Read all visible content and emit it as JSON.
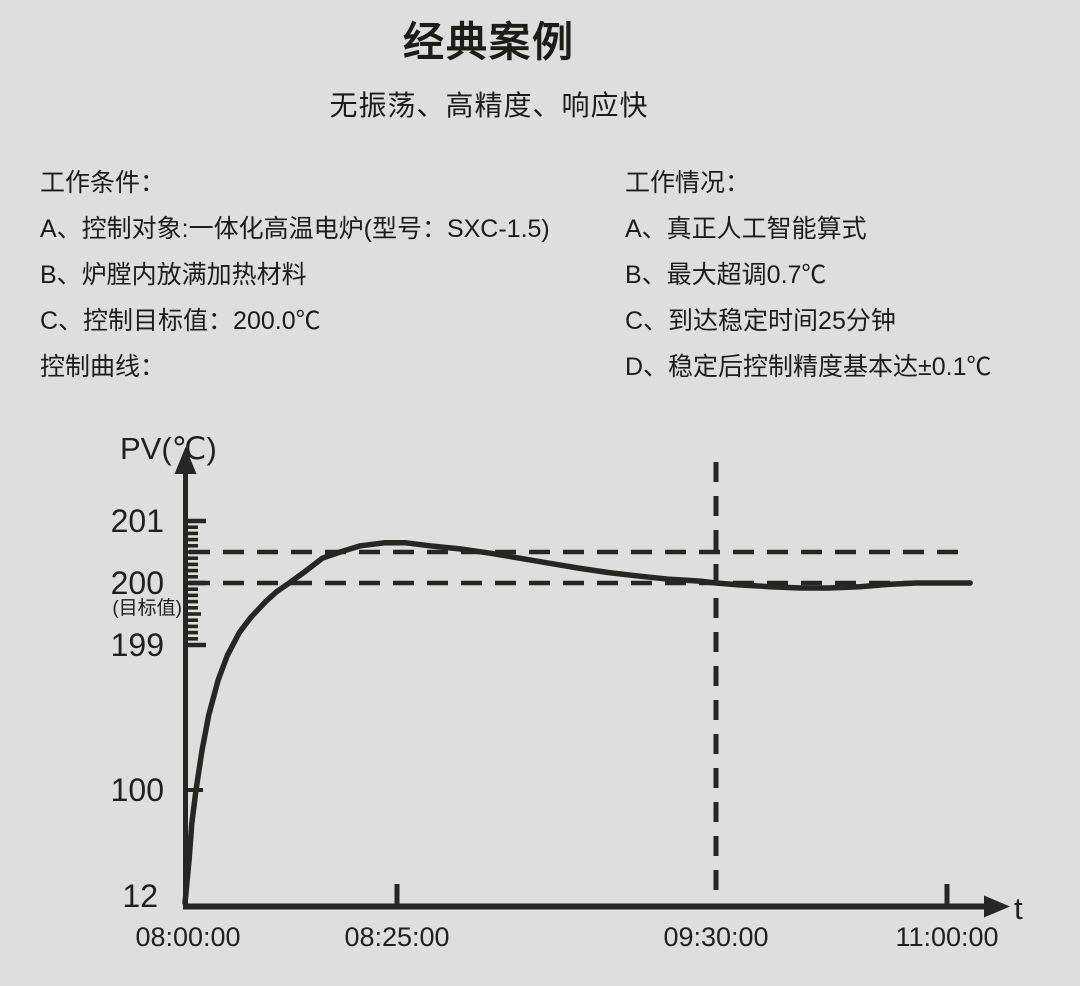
{
  "page": {
    "background": "#dedede",
    "ink": "#282622"
  },
  "header": {
    "title": "经典案例",
    "subtitle": "无振荡、高精度、响应快"
  },
  "conditions": {
    "heading": "工作条件：",
    "items": [
      "A、控制对象:一体化高温电炉(型号：SXC-1.5)",
      "B、炉膛内放满加热材料",
      "C、控制目标值：200.0℃"
    ],
    "footer": "控制曲线："
  },
  "performance": {
    "heading": "工作情况：",
    "items": [
      "A、真正人工智能算式",
      "B、最大超调0.7℃",
      "C、到达稳定时间25分钟",
      "D、稳定后控制精度基本达±0.1℃"
    ]
  },
  "chart_data": {
    "type": "line",
    "ylabel": "PV(℃)",
    "xlabel": "t",
    "target_note": "(目标值)",
    "target_value": 200.0,
    "x_ticks": [
      {
        "label": "08:00:00",
        "minutes": 0
      },
      {
        "label": "08:25:00",
        "minutes": 25
      },
      {
        "label": "09:30:00",
        "minutes": 90
      },
      {
        "label": "11:00:00",
        "minutes": 180
      }
    ],
    "y_ticks": [
      {
        "label": "201",
        "value": 201
      },
      {
        "label": "200",
        "value": 200
      },
      {
        "label": "199",
        "value": 199
      },
      {
        "label": "100",
        "value": 100
      },
      {
        "label": "12",
        "value": 12
      }
    ],
    "ruler": {
      "from": 199.0,
      "to": 201.0,
      "minor_step": 0.1
    },
    "dashed_h_lines": [
      200.5,
      200.0
    ],
    "dashed_v_line_minutes": 90,
    "grid": false,
    "legend": false,
    "series": [
      {
        "name": "PV",
        "points": [
          [
            0,
            12
          ],
          [
            0.5,
            47
          ],
          [
            0.8,
            74
          ],
          [
            1.3,
            100
          ],
          [
            2,
            127
          ],
          [
            2.8,
            151
          ],
          [
            3.9,
            175
          ],
          [
            5,
            192
          ],
          [
            6.4,
            199.2
          ],
          [
            7.8,
            199.45
          ],
          [
            9.5,
            199.7
          ],
          [
            10.9,
            199.87
          ],
          [
            12.3,
            200.0
          ],
          [
            14.3,
            200.2
          ],
          [
            16.2,
            200.4
          ],
          [
            18.3,
            200.5
          ],
          [
            20.7,
            200.6
          ],
          [
            23.6,
            200.65
          ],
          [
            26.6,
            200.65
          ],
          [
            31.7,
            200.6
          ],
          [
            37.8,
            200.55
          ],
          [
            44,
            200.48
          ],
          [
            50,
            200.4
          ],
          [
            56,
            200.32
          ],
          [
            62,
            200.24
          ],
          [
            68,
            200.17
          ],
          [
            74.5,
            200.11
          ],
          [
            80.6,
            200.06
          ],
          [
            86.7,
            200.03
          ],
          [
            90,
            200.0
          ],
          [
            99,
            199.97
          ],
          [
            111,
            199.94
          ],
          [
            123,
            199.92
          ],
          [
            134,
            199.92
          ],
          [
            146,
            199.94
          ],
          [
            158,
            199.98
          ],
          [
            168,
            200.0
          ],
          [
            177,
            200.0
          ],
          [
            189,
            200.0
          ]
        ]
      }
    ]
  }
}
